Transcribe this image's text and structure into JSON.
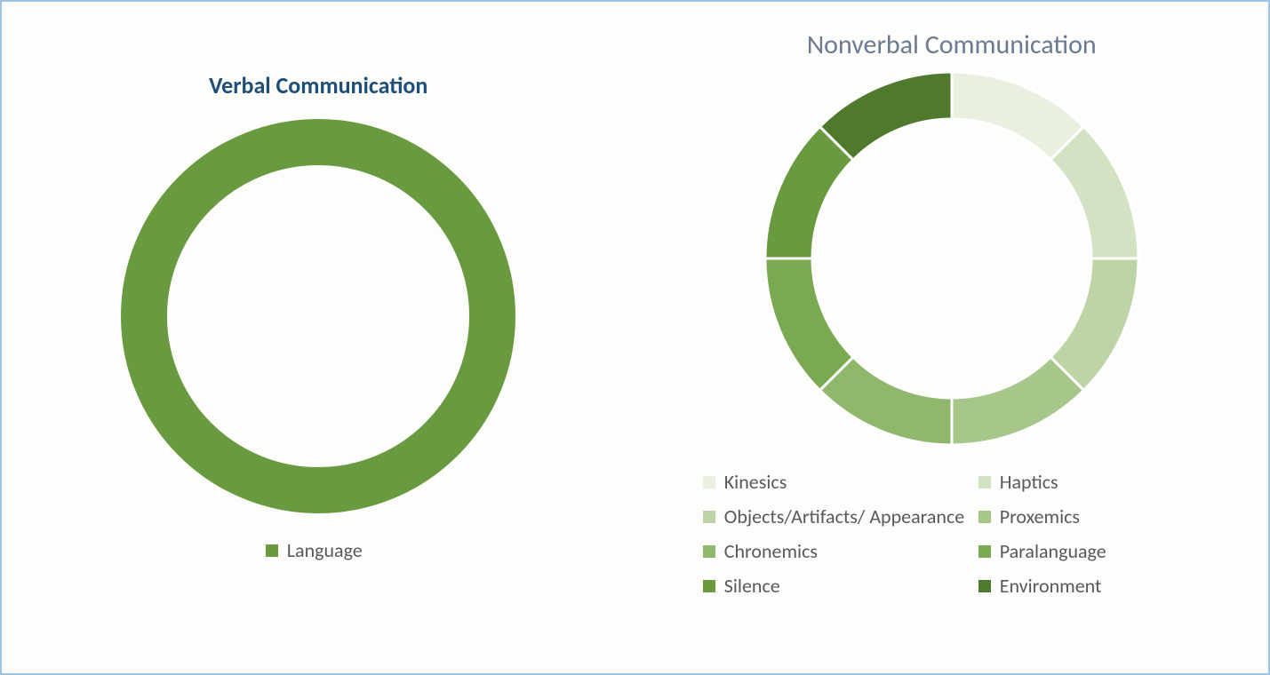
{
  "background_color": "#fdfdfc",
  "border_color": "#9cc2e5",
  "verbal": {
    "title": "Verbal Communication",
    "title_color": "#1f4e79",
    "title_fontsize": 26,
    "title_fontweight": 700,
    "type": "donut",
    "outer_radius": 222,
    "inner_radius": 170,
    "slices": [
      {
        "label": "Language",
        "value": 100,
        "color": "#6a9a3f"
      }
    ],
    "slice_gap_deg": 0,
    "legend_text_color": "#595959",
    "legend_fontsize": 22
  },
  "nonverbal": {
    "title": "Nonverbal Communication",
    "title_color": "#6b7a8f",
    "title_fontsize": 30,
    "title_fontweight": 400,
    "type": "donut",
    "outer_radius": 210,
    "inner_radius": 157,
    "slice_gap_color": "#ffffff",
    "slice_gap_width": 3,
    "slices": [
      {
        "label": "Kinesics",
        "value": 12.5,
        "color": "#e9f0e0"
      },
      {
        "label": "Haptics",
        "value": 12.5,
        "color": "#d4e2c4"
      },
      {
        "label": "Objects/Artifacts/ Appearance",
        "value": 12.5,
        "color": "#bdd4a6"
      },
      {
        "label": "Proxemics",
        "value": 12.5,
        "color": "#a7c689"
      },
      {
        "label": "Chronemics",
        "value": 12.5,
        "color": "#90b86c"
      },
      {
        "label": "Paralanguage",
        "value": 12.5,
        "color": "#7ba951"
      },
      {
        "label": "Silence",
        "value": 12.5,
        "color": "#6a9a3f"
      },
      {
        "label": "Environment",
        "value": 12.5,
        "color": "#4f7a2d"
      }
    ],
    "legend_text_color": "#595959",
    "legend_fontsize": 22
  }
}
